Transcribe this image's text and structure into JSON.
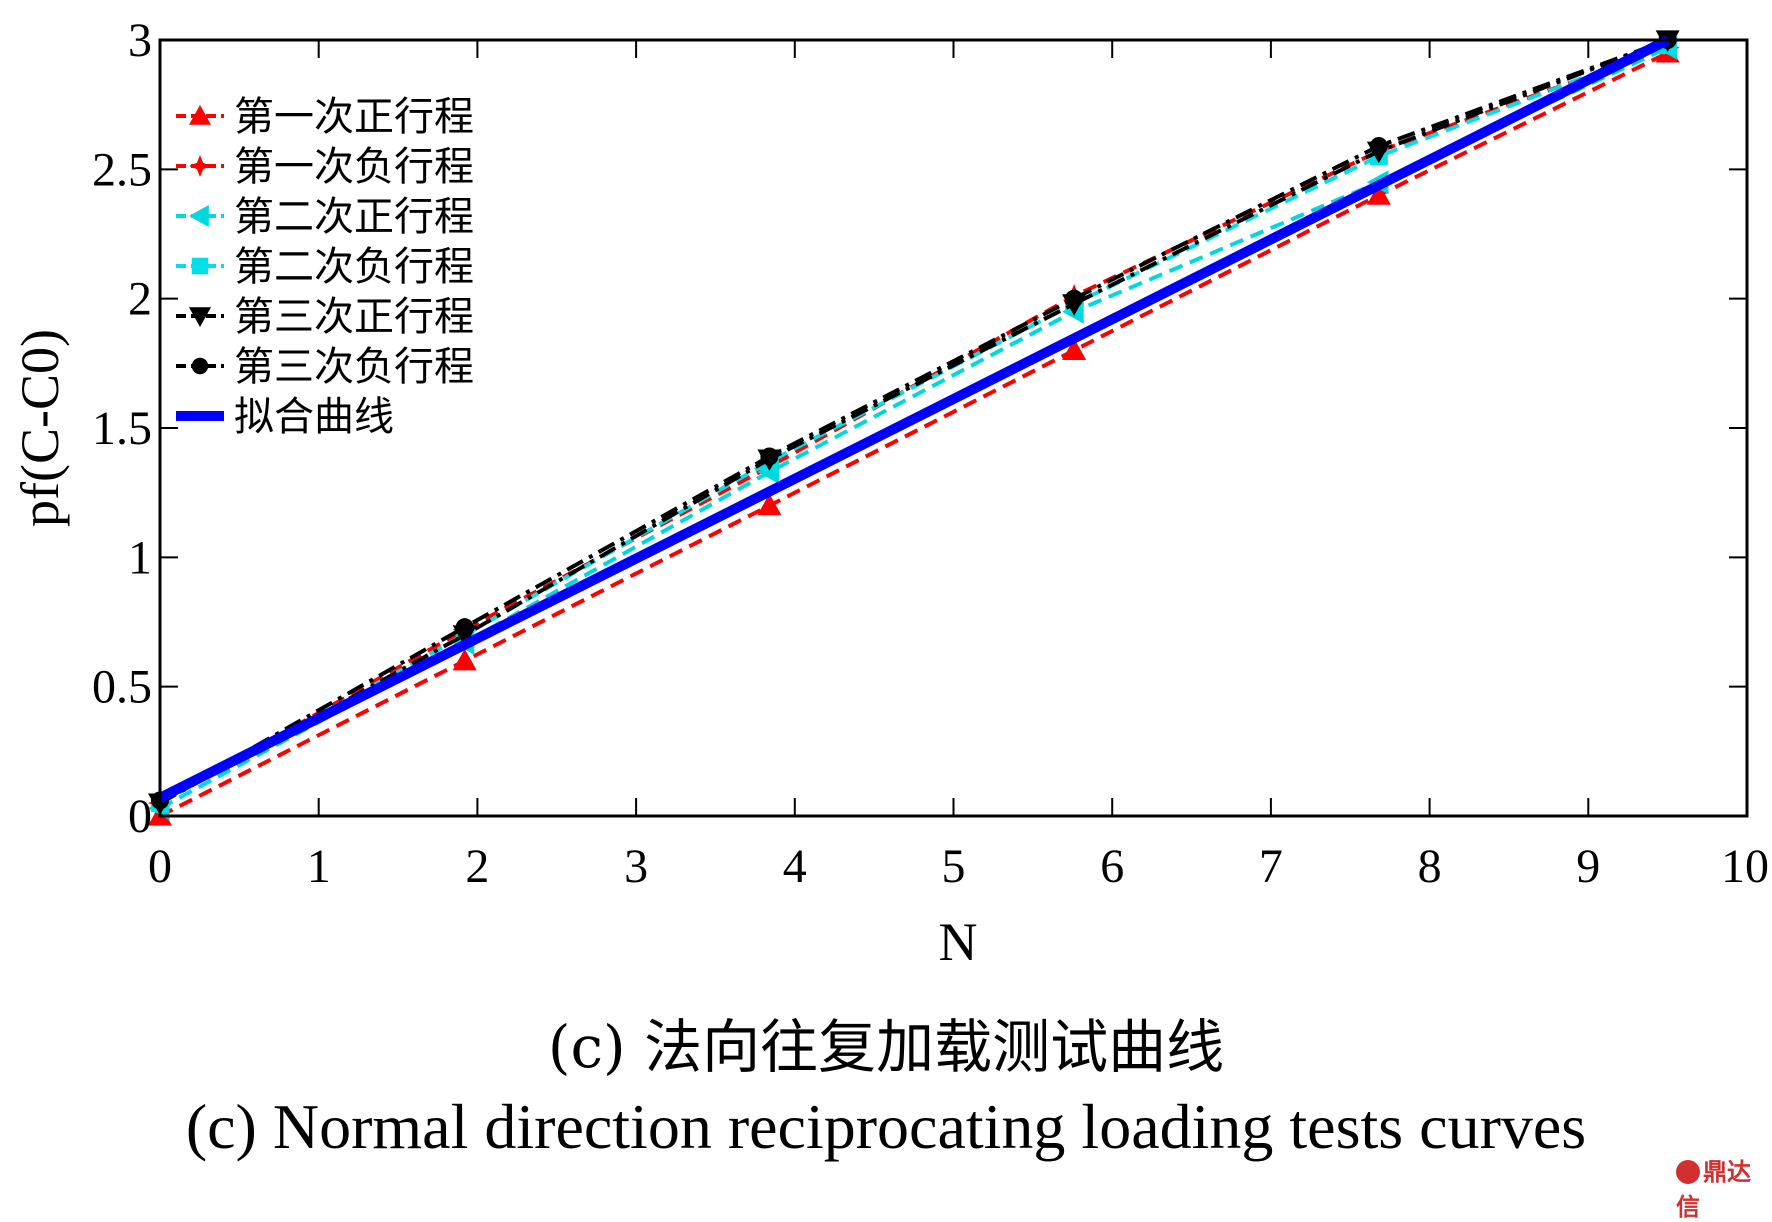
{
  "chart_data": {
    "type": "line",
    "title": "",
    "xlabel": "N",
    "ylabel": "pf(C-C0)",
    "xlim": [
      0,
      10
    ],
    "ylim": [
      0,
      3
    ],
    "xticks": [
      "0",
      "1",
      "2",
      "3",
      "4",
      "5",
      "6",
      "7",
      "8",
      "9",
      "10"
    ],
    "yticks": [
      "0",
      "0.5",
      "1",
      "1.5",
      "2",
      "2.5",
      "3"
    ],
    "grid": false,
    "legend_position": "top-left",
    "series": [
      {
        "name": "第一次正行程",
        "color": "#ff0000",
        "line": "dashed",
        "marker": "triangle-up",
        "x": [
          0,
          1.92,
          3.84,
          5.76,
          7.68,
          9.5
        ],
        "y": [
          0.0,
          0.6,
          1.2,
          1.8,
          2.4,
          2.95
        ]
      },
      {
        "name": "第一次负行程",
        "color": "#ff0000",
        "line": "dashed",
        "marker": "star",
        "x": [
          0,
          1.92,
          3.84,
          5.76,
          7.68,
          9.5
        ],
        "y": [
          0.05,
          0.72,
          1.35,
          2.01,
          2.57,
          2.97
        ]
      },
      {
        "name": "第二次正行程",
        "color": "#00d8e0",
        "line": "dashed",
        "marker": "triangle-left",
        "x": [
          0,
          1.92,
          3.84,
          5.76,
          7.68,
          9.5
        ],
        "y": [
          0.03,
          0.67,
          1.33,
          1.95,
          2.45,
          2.97
        ]
      },
      {
        "name": "第二次负行程",
        "color": "#00e0e8",
        "line": "dashed",
        "marker": "square",
        "x": [
          0,
          1.92,
          3.84,
          5.76,
          7.68,
          9.5
        ],
        "y": [
          0.05,
          0.7,
          1.37,
          1.98,
          2.55,
          2.98
        ]
      },
      {
        "name": "第三次正行程",
        "color": "#000000",
        "line": "dash-dot",
        "marker": "triangle-down",
        "x": [
          0,
          1.92,
          3.84,
          5.76,
          7.68,
          9.5
        ],
        "y": [
          0.05,
          0.7,
          1.38,
          1.98,
          2.57,
          3.0
        ]
      },
      {
        "name": "第三次负行程",
        "color": "#000000",
        "line": "dash-dot",
        "marker": "circle",
        "x": [
          0,
          1.92,
          3.84,
          5.76,
          7.68,
          9.5
        ],
        "y": [
          0.06,
          0.73,
          1.39,
          2.0,
          2.59,
          3.0
        ]
      },
      {
        "name": "拟合曲线",
        "color": "#0000ff",
        "line": "solid",
        "marker": "none",
        "x": [
          0,
          9.5
        ],
        "y": [
          0.07,
          3.0
        ]
      }
    ]
  },
  "captions": {
    "cn": "(c) 法向往复加载测试曲线",
    "en": "(c) Normal direction reciprocating loading tests curves"
  },
  "watermark": "鼎达信"
}
